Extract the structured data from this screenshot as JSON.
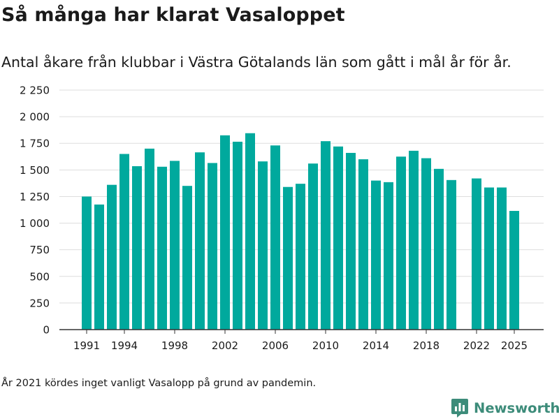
{
  "header": {
    "title": "Så många har klarat Vasaloppet",
    "subtitle": "Antal åkare från klubbar i Västra Götalands län som gått i mål år för år."
  },
  "footer": {
    "note": "År 2021 kördes inget vanligt Vasalopp på grund av pandemin.",
    "brand": "Newsworthy"
  },
  "colors": {
    "bar": "#00a99d",
    "grid": "#dddddd",
    "axis": "#333333",
    "text": "#1a1a1a",
    "brand": "#3d8c7a"
  },
  "chart_data": {
    "type": "bar",
    "title": "Så många har klarat Vasaloppet",
    "xlabel": "",
    "ylabel": "",
    "ylim": [
      0,
      2250
    ],
    "yticks": [
      0,
      250,
      500,
      750,
      1000,
      1250,
      1500,
      1750,
      2000,
      2250
    ],
    "ytick_labels": [
      "0",
      "250",
      "500",
      "750",
      "1 000",
      "1 250",
      "1 500",
      "1 750",
      "2 000",
      "2 250"
    ],
    "xticks": [
      1991,
      1994,
      1998,
      2002,
      2006,
      2010,
      2014,
      2018,
      2022,
      2025
    ],
    "xtick_labels": [
      "1991",
      "1994",
      "1998",
      "2002",
      "2006",
      "2010",
      "2014",
      "2018",
      "2022",
      "2025"
    ],
    "grid": true,
    "legend": "none",
    "x": [
      1991,
      1992,
      1993,
      1994,
      1995,
      1996,
      1997,
      1998,
      1999,
      2000,
      2001,
      2002,
      2003,
      2004,
      2005,
      2006,
      2007,
      2008,
      2009,
      2010,
      2011,
      2012,
      2013,
      2014,
      2015,
      2016,
      2017,
      2018,
      2019,
      2020,
      2021,
      2022,
      2023,
      2024,
      2025
    ],
    "values": [
      1250,
      1175,
      1360,
      1650,
      1535,
      1700,
      1530,
      1585,
      1350,
      1665,
      1565,
      1825,
      1765,
      1845,
      1580,
      1730,
      1340,
      1370,
      1560,
      1770,
      1720,
      1660,
      1600,
      1400,
      1385,
      1625,
      1680,
      1610,
      1510,
      1405,
      null,
      1420,
      1335,
      1335,
      1115
    ]
  }
}
